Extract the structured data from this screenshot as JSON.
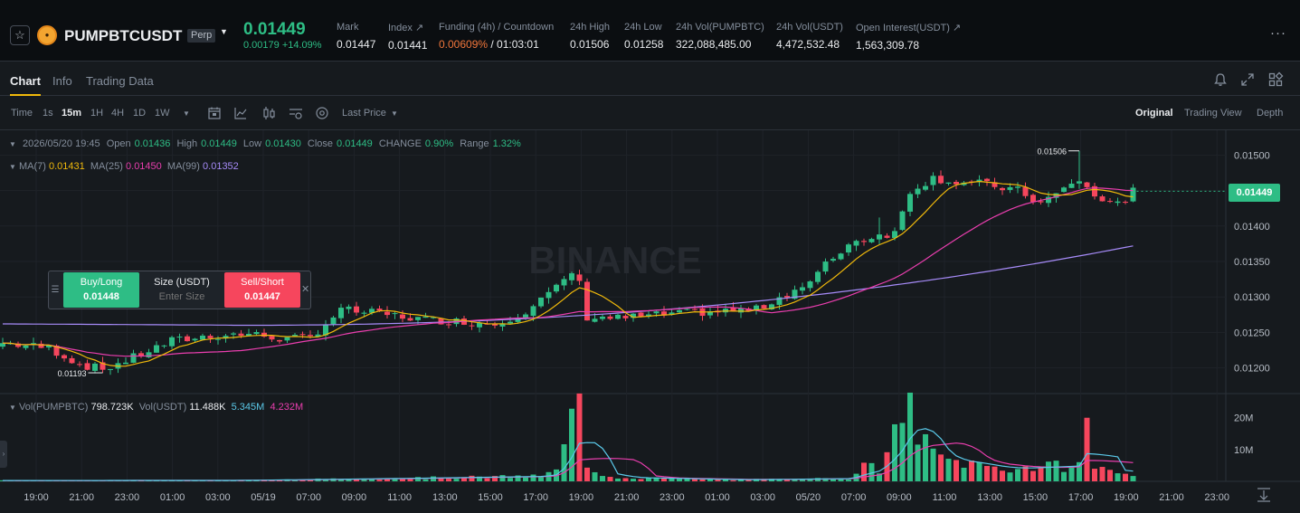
{
  "header": {
    "symbol": "PUMPBTCUSDT",
    "badge": "Perp",
    "last_price": "0.01449",
    "change": "0.00179 +14.09%",
    "stats": [
      {
        "label": "Mark",
        "value": "0.01447"
      },
      {
        "label": "Index ↗",
        "value": "0.01441"
      },
      {
        "label": "Funding (4h) / Countdown",
        "value_a": "0.00609%",
        "value_b": " / 01:03:01"
      },
      {
        "label": "24h High",
        "value": "0.01506"
      },
      {
        "label": "24h Low",
        "value": "0.01258"
      },
      {
        "label": "24h Vol(PUMPBTC)",
        "value": "322,088,485.00"
      },
      {
        "label": "24h Vol(USDT)",
        "value": "4,472,532.48"
      },
      {
        "label": "Open Interest(USDT) ↗",
        "value": "1,563,309.78"
      }
    ],
    "more": "···"
  },
  "tabs": [
    "Chart",
    "Info",
    "Trading Data"
  ],
  "toolbar": {
    "intervals": [
      "Time",
      "1s",
      "15m",
      "1H",
      "4H",
      "1D",
      "1W"
    ],
    "price_type": "Last Price",
    "views": [
      "Original",
      "Trading View",
      "Depth"
    ]
  },
  "ohlc": {
    "date": "2026/05/20 19:45",
    "open_label": "Open",
    "open": "0.01436",
    "high_label": "High",
    "high": "0.01449",
    "low_label": "Low",
    "low": "0.01430",
    "close_label": "Close",
    "close": "0.01449",
    "change_label": "CHANGE",
    "change": "0.90%",
    "range_label": "Range",
    "range": "1.32%"
  },
  "ma": {
    "ma7_label": "MA(7)",
    "ma7": "0.01431",
    "ma25_label": "MA(25)",
    "ma25": "0.01450",
    "ma99_label": "MA(99)",
    "ma99": "0.01352"
  },
  "volume": {
    "label": "Vol(PUMPBTC)",
    "value": "798.723K",
    "usdt_label": "Vol(USDT)",
    "usdt_value": "11.488K",
    "ma_a": "5.345M",
    "ma_b": "4.232M"
  },
  "current_price_tag": "0.01449",
  "quick_trade": {
    "buy_label": "Buy/Long",
    "buy_price": "0.01448",
    "size_label": "Size (USDT)",
    "size_placeholder": "Enter Size",
    "sell_label": "Sell/Short",
    "sell_price": "0.01447"
  },
  "colors": {
    "up": "#2ebd85",
    "down": "#f6465d",
    "ma7": "#f0b90b",
    "ma25": "#e93eae",
    "ma99": "#a68bf8",
    "accent": "#f0b90b"
  },
  "watermark": "BINANCE",
  "chart_data": {
    "type": "candlestick",
    "price_axis": [
      "0.01500",
      "0.01450",
      "0.01400",
      "0.01350",
      "0.01300",
      "0.01250",
      "0.01200"
    ],
    "price_ticks": [
      0.015,
      0.0145,
      0.014,
      0.0135,
      0.013,
      0.0125,
      0.012
    ],
    "price_range": [
      0.01165,
      0.01535
    ],
    "volume_axis": [
      "20M",
      "10M"
    ],
    "volume_ticks": [
      20,
      10
    ],
    "volume_unit": "M",
    "volume_range": [
      0,
      25
    ],
    "time_axis": [
      "19:00",
      "21:00",
      "23:00",
      "01:00",
      "03:00",
      "05/19",
      "07:00",
      "09:00",
      "11:00",
      "13:00",
      "15:00",
      "17:00",
      "19:00",
      "21:00",
      "23:00",
      "01:00",
      "03:00",
      "05/20",
      "07:00",
      "09:00",
      "11:00",
      "13:00",
      "15:00",
      "17:00",
      "19:00",
      "21:00",
      "23:00"
    ],
    "high_marker": "0.01506",
    "low_marker": "0.01193",
    "price_keypoints": [
      [
        0,
        0.01235
      ],
      [
        6,
        0.01228
      ],
      [
        10,
        0.01205
      ],
      [
        13,
        0.01198
      ],
      [
        16,
        0.0121
      ],
      [
        22,
        0.01238
      ],
      [
        27,
        0.01245
      ],
      [
        32,
        0.01248
      ],
      [
        37,
        0.0124
      ],
      [
        40,
        0.01243
      ],
      [
        44,
        0.01282
      ],
      [
        50,
        0.01275
      ],
      [
        55,
        0.01268
      ],
      [
        60,
        0.01265
      ],
      [
        64,
        0.01262
      ],
      [
        68,
        0.0128
      ],
      [
        72,
        0.01312
      ],
      [
        74,
        0.01335
      ],
      [
        75,
        0.01318
      ],
      [
        76,
        0.01272
      ],
      [
        80,
        0.0127
      ],
      [
        90,
        0.01278
      ],
      [
        98,
        0.01282
      ],
      [
        102,
        0.01305
      ],
      [
        105,
        0.0132
      ],
      [
        107,
        0.01345
      ],
      [
        110,
        0.01375
      ],
      [
        114,
        0.01388
      ],
      [
        116,
        0.0139
      ],
      [
        118,
        0.0145
      ],
      [
        121,
        0.01468
      ],
      [
        124,
        0.01462
      ],
      [
        127,
        0.0146
      ],
      [
        132,
        0.0145
      ],
      [
        135,
        0.01432
      ],
      [
        140,
        0.01465
      ],
      [
        143,
        0.01432
      ],
      [
        146,
        0.01438
      ],
      [
        147,
        0.01449
      ]
    ],
    "volume_keypoints": [
      [
        0,
        0.25
      ],
      [
        30,
        0.3
      ],
      [
        50,
        0.9
      ],
      [
        70,
        1.6
      ],
      [
        72,
        3.2
      ],
      [
        74,
        19
      ],
      [
        75,
        24
      ],
      [
        76,
        3.5
      ],
      [
        80,
        1.2
      ],
      [
        95,
        0.5
      ],
      [
        110,
        0.9
      ],
      [
        112,
        4.5
      ],
      [
        114,
        3.8
      ],
      [
        118,
        23
      ],
      [
        120,
        11
      ],
      [
        122,
        7
      ],
      [
        125,
        6
      ],
      [
        130,
        4
      ],
      [
        140,
        5
      ],
      [
        141,
        24
      ],
      [
        142,
        4
      ],
      [
        147,
        2.7
      ]
    ],
    "n_candles": 148,
    "high_candle_index": 140,
    "low_candle_index": 13
  }
}
